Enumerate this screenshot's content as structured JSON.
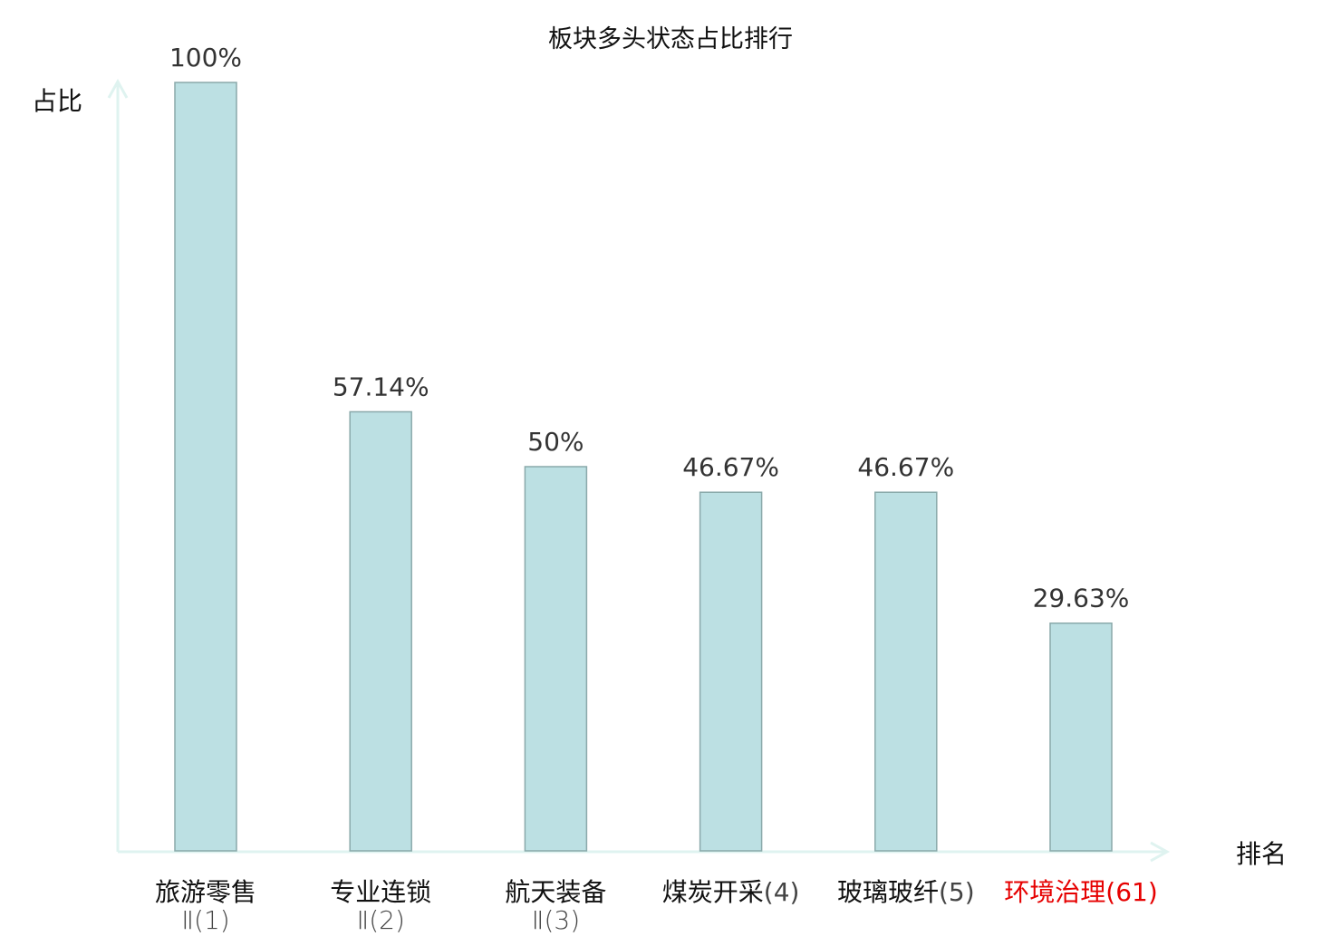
{
  "chart_data": {
    "type": "bar",
    "title": "板块多头状态占比排行",
    "ylabel": "占比",
    "xlabel": "排名",
    "ylim": [
      0,
      100
    ],
    "grid": false,
    "categories": [
      {
        "name": "旅游零售",
        "sub": "Ⅱ(1)",
        "highlight": false
      },
      {
        "name": "专业连锁",
        "sub": "Ⅱ(2)",
        "highlight": false
      },
      {
        "name": "航天装备",
        "sub": "Ⅱ(3)",
        "highlight": false
      },
      {
        "name": "煤炭开采",
        "sub": "(4)",
        "highlight": false
      },
      {
        "name": "玻璃玻纤",
        "sub": "(5)",
        "highlight": false
      },
      {
        "name": "环境治理",
        "sub": "(61)",
        "highlight": true
      }
    ],
    "values": [
      100,
      57.14,
      50,
      46.67,
      46.67,
      29.63
    ],
    "value_labels": [
      "100%",
      "57.14%",
      "50%",
      "46.67%",
      "46.67%",
      "29.63%"
    ],
    "colors": {
      "bar_fill": "#bce0e3",
      "bar_stroke": "#8aa9aa",
      "axis": "#dff3f0",
      "highlight": "#e60000",
      "text": "#333333"
    }
  }
}
